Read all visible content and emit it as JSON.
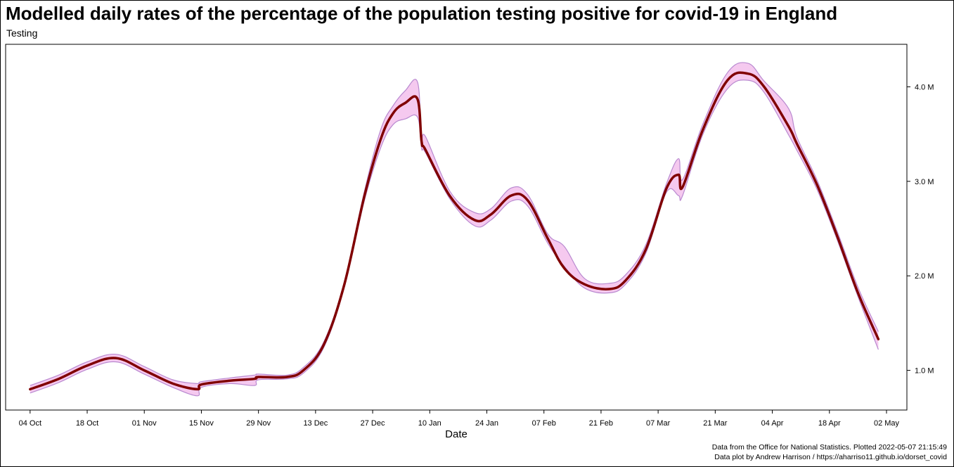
{
  "chart_data": {
    "type": "line",
    "title": "Modelled daily rates of the percentage of the population testing positive for covid-19 in England",
    "subtitle": "Testing",
    "xlabel": "Date",
    "ylabel": "",
    "x_ticks": [
      "04 Oct",
      "18 Oct",
      "01 Nov",
      "15 Nov",
      "29 Nov",
      "13 Dec",
      "27 Dec",
      "10 Jan",
      "24 Jan",
      "07 Feb",
      "21 Feb",
      "07 Mar",
      "21 Mar",
      "04 Apr",
      "18 Apr",
      "02 May"
    ],
    "y_ticks": [
      "1.0 M",
      "2.0 M",
      "3.0 M",
      "4.0 M"
    ],
    "ylim": [
      0.58,
      4.45
    ],
    "xlim": [
      "2021-09-28",
      "2022-05-07"
    ],
    "y_axis_side": "right",
    "grid": false,
    "line_color": "#800000",
    "ribbon_fill": "#f5c9ef",
    "ribbon_edge": "#b98ad0",
    "series": [
      {
        "x": [
          "2021-10-04",
          "2021-10-11",
          "2021-10-18",
          "2021-10-25",
          "2021-11-01",
          "2021-11-08",
          "2021-11-14",
          "2021-11-15",
          "2021-11-22",
          "2021-11-28",
          "2021-11-29",
          "2021-12-06",
          "2021-12-10",
          "2021-12-15",
          "2021-12-20",
          "2021-12-25",
          "2021-12-29",
          "2022-01-01",
          "2022-01-04",
          "2022-01-07",
          "2022-01-08",
          "2022-01-09",
          "2022-01-15",
          "2022-01-21",
          "2022-01-25",
          "2022-01-30",
          "2022-02-03",
          "2022-02-08",
          "2022-02-12",
          "2022-02-17",
          "2022-02-23",
          "2022-02-27",
          "2022-03-04",
          "2022-03-09",
          "2022-03-12",
          "2022-03-13",
          "2022-03-18",
          "2022-03-24",
          "2022-03-29",
          "2022-04-02",
          "2022-04-08",
          "2022-04-10",
          "2022-04-15",
          "2022-04-20",
          "2022-04-25",
          "2022-04-30"
        ],
        "y": [
          0.8,
          0.91,
          1.05,
          1.13,
          1.0,
          0.86,
          0.8,
          0.85,
          0.89,
          0.91,
          0.93,
          0.93,
          1.0,
          1.27,
          1.9,
          2.85,
          3.45,
          3.72,
          3.83,
          3.87,
          3.42,
          3.33,
          2.84,
          2.59,
          2.65,
          2.85,
          2.8,
          2.39,
          2.08,
          1.91,
          1.86,
          1.95,
          2.28,
          2.92,
          3.07,
          2.94,
          3.55,
          4.07,
          4.14,
          4.0,
          3.58,
          3.4,
          2.96,
          2.41,
          1.82,
          1.33
        ],
        "lower": [
          0.76,
          0.87,
          1.01,
          1.09,
          0.96,
          0.82,
          0.73,
          0.82,
          0.86,
          0.84,
          0.9,
          0.91,
          0.97,
          1.24,
          1.87,
          2.8,
          3.36,
          3.6,
          3.66,
          3.68,
          3.35,
          3.3,
          2.81,
          2.53,
          2.59,
          2.79,
          2.74,
          2.34,
          2.1,
          1.87,
          1.82,
          1.91,
          2.24,
          2.88,
          2.85,
          2.85,
          3.5,
          3.98,
          4.07,
          3.94,
          3.49,
          3.33,
          2.91,
          2.37,
          1.78,
          1.22
        ],
        "upper": [
          0.84,
          0.95,
          1.09,
          1.17,
          1.04,
          0.9,
          0.86,
          0.88,
          0.92,
          0.95,
          0.96,
          0.95,
          1.03,
          1.3,
          1.93,
          2.9,
          3.55,
          3.8,
          3.96,
          4.05,
          3.46,
          3.47,
          2.89,
          2.67,
          2.71,
          2.93,
          2.86,
          2.44,
          2.31,
          1.97,
          1.92,
          2.01,
          2.33,
          2.97,
          3.24,
          3.02,
          3.61,
          4.15,
          4.25,
          4.06,
          3.77,
          3.47,
          3.01,
          2.46,
          1.88,
          1.41
        ]
      }
    ]
  },
  "captions": {
    "line1": "Data from the Office for National Statistics. Plotted 2022-05-07 21:15:49",
    "line2": "Data plot by Andrew Harrison / https://aharriso11.github.io/dorset_covid"
  }
}
